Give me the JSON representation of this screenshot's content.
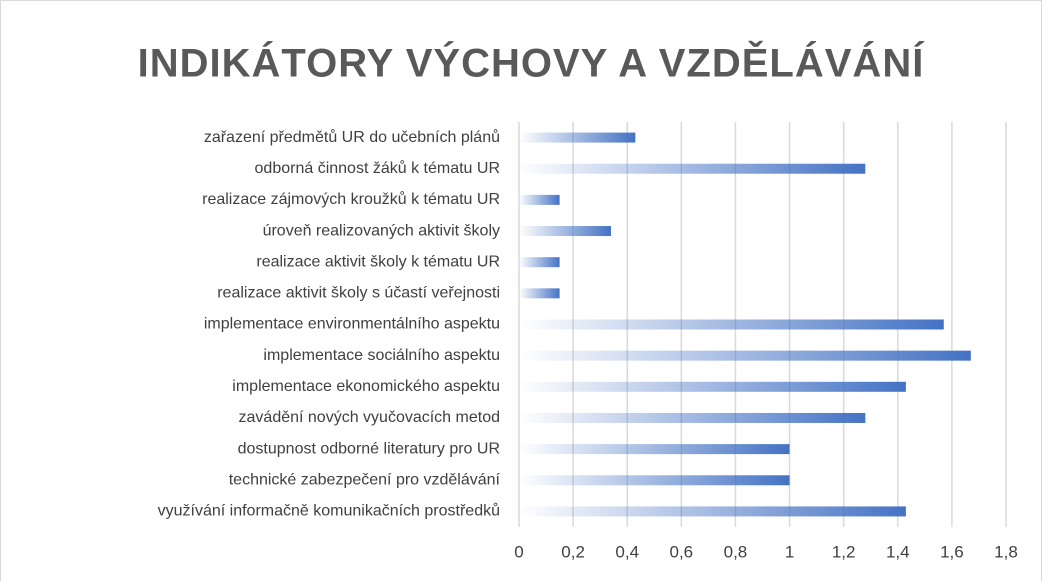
{
  "chart_data": {
    "type": "barh",
    "title": "INDIKÁTORY VÝCHOVY A VZDĚLÁVÁNÍ",
    "categories": [
      "zařazení předmětů UR do učebních plánů",
      "odborná činnost žáků k tématu UR",
      "realizace zájmových kroužků k tématu UR",
      "úroveň realizovaných aktivit školy",
      "realizace aktivit školy k tématu UR",
      "realizace aktivit školy s účastí veřejnosti",
      "implementace environmentálního aspektu",
      "implementace sociálního aspektu",
      "implementace ekonomického aspektu",
      "zavádění nových vyučovacích metod",
      "dostupnost odborné literatury pro UR",
      "technické zabezpečení pro vzdělávání",
      "využívání informačně komunikačních prostředků"
    ],
    "values": [
      0.43,
      1.28,
      0.15,
      0.34,
      0.15,
      0.15,
      1.57,
      1.67,
      1.43,
      1.28,
      1.0,
      1.0,
      1.43
    ],
    "color": "#4472c4",
    "xlim": [
      0,
      1.8
    ],
    "xticks": [
      0,
      {
        "value": 0.2,
        "label": "0,2"
      },
      {
        "value": 0.4,
        "label": "0,4"
      },
      {
        "value": 0.6,
        "label": "0,6"
      },
      {
        "value": 0.8,
        "label": "0,8"
      },
      1,
      {
        "value": 1.2,
        "label": "1,2"
      },
      {
        "value": 1.4,
        "label": "1,4"
      },
      {
        "value": 1.6,
        "label": "1,6"
      },
      {
        "value": 1.8,
        "label": "1,8"
      }
    ],
    "grid": true
  }
}
